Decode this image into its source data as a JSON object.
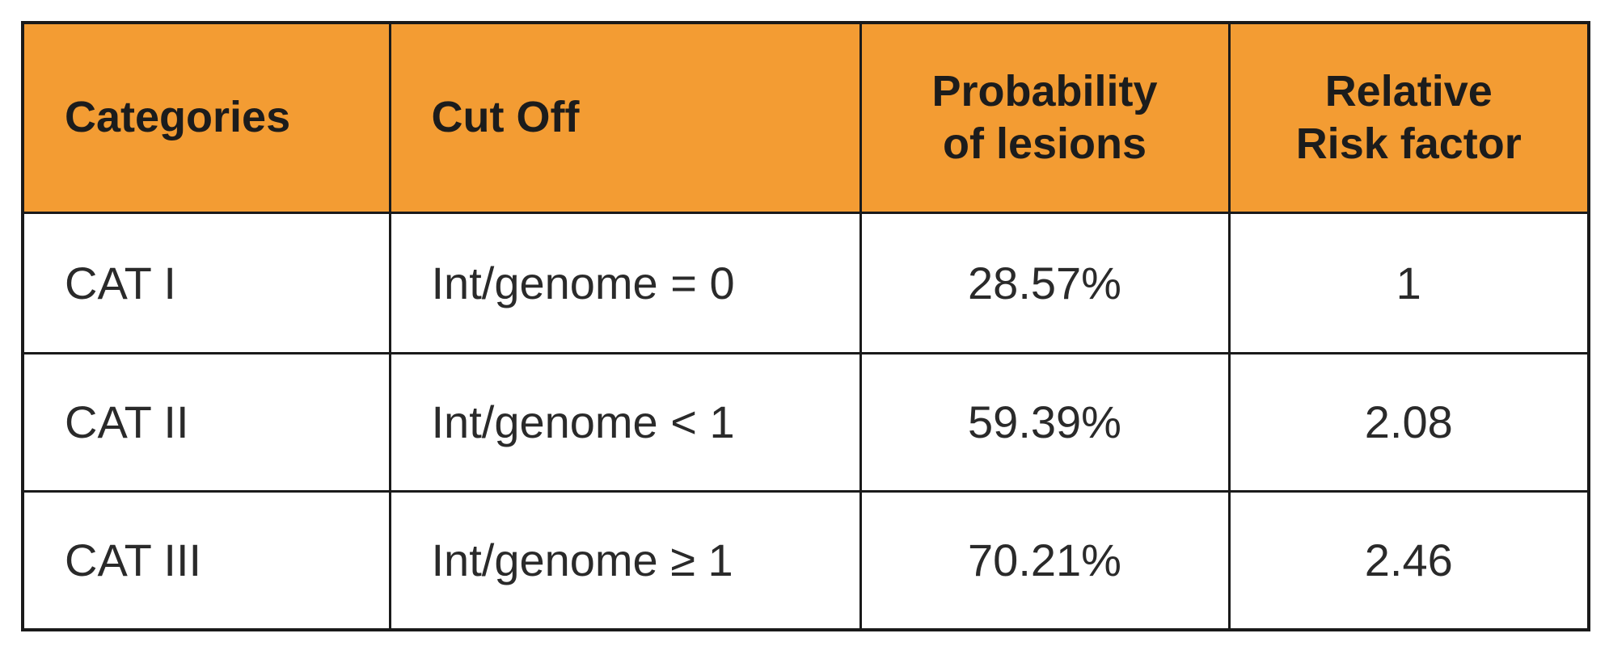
{
  "table": {
    "headers": {
      "categories": "Categories",
      "cut_off": "Cut Off",
      "probability_line1": "Probability",
      "probability_line2": "of lesions",
      "relative_line1": "Relative",
      "relative_line2": "Risk factor"
    },
    "rows": [
      {
        "category": "CAT I",
        "cut_off": "Int/genome = 0",
        "probability": "28.57%",
        "relative_risk": "1"
      },
      {
        "category": "CAT II",
        "cut_off": "Int/genome < 1",
        "probability": "59.39%",
        "relative_risk": "2.08"
      },
      {
        "category": "CAT III",
        "cut_off": "Int/genome ≥ 1",
        "probability": "70.21%",
        "relative_risk": "2.46"
      }
    ]
  },
  "colors": {
    "header_background": "#f39c33",
    "border": "#1a1a1a",
    "text": "#1a1a1a"
  }
}
